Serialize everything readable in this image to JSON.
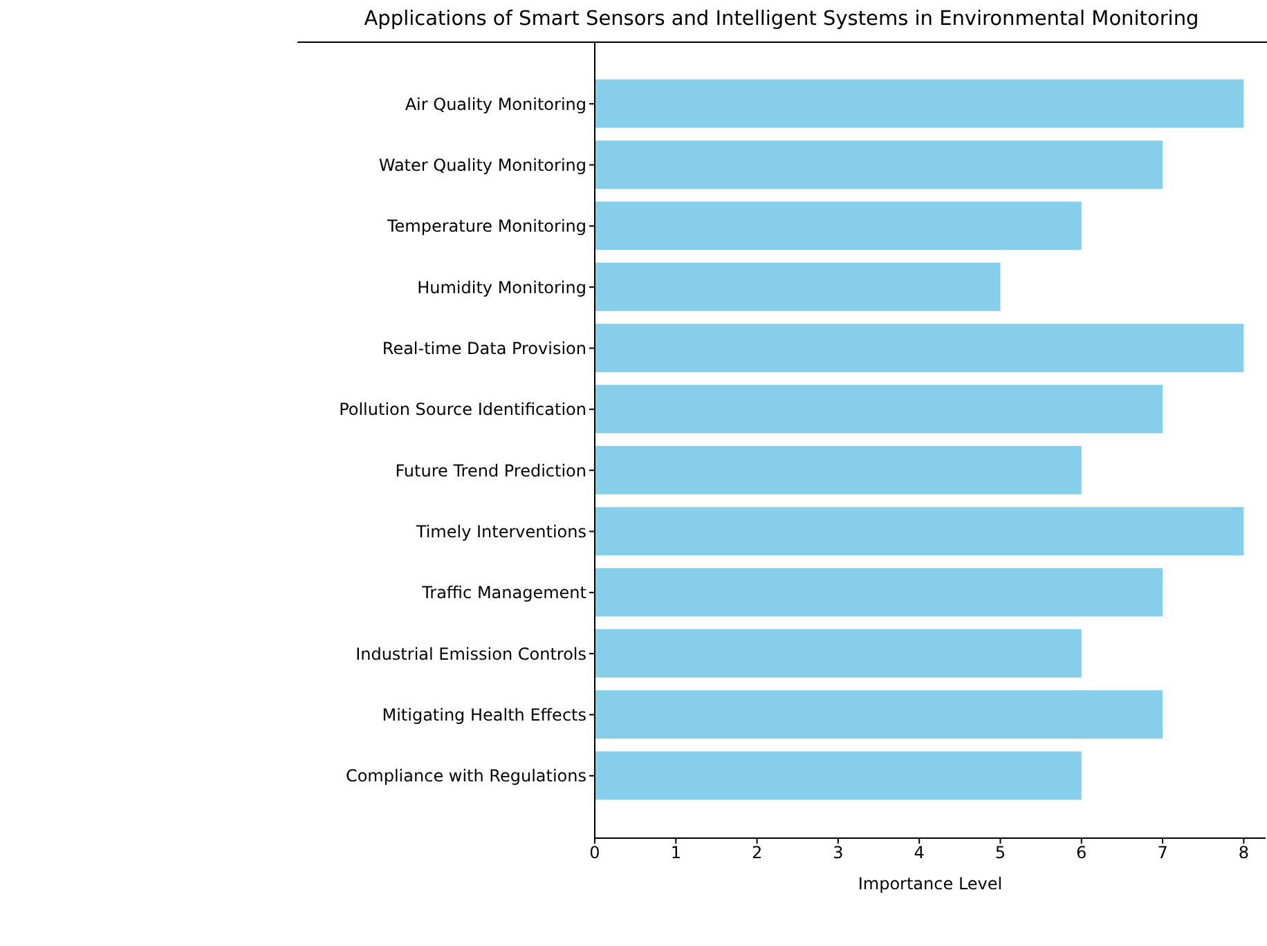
{
  "chart_data": {
    "type": "bar",
    "orientation": "horizontal",
    "title": "Applications of Smart Sensors and Intelligent Systems in Environmental Monitoring",
    "xlabel": "Importance Level",
    "categories": [
      "Air Quality Monitoring",
      "Water Quality Monitoring",
      "Temperature Monitoring",
      "Humidity Monitoring",
      "Real-time Data Provision",
      "Pollution Source Identification",
      "Future Trend Prediction",
      "Timely Interventions",
      "Traffic Management",
      "Industrial Emission Controls",
      "Mitigating Health Effects",
      "Compliance with Regulations"
    ],
    "values": [
      8,
      7,
      6,
      5,
      8,
      7,
      6,
      8,
      7,
      6,
      7,
      6
    ],
    "color": "#87ceeb",
    "xlim": [
      0,
      8.27
    ],
    "xticks": [
      0,
      1,
      2,
      3,
      4,
      5,
      6,
      7,
      8
    ],
    "grid": false,
    "legend": false
  }
}
